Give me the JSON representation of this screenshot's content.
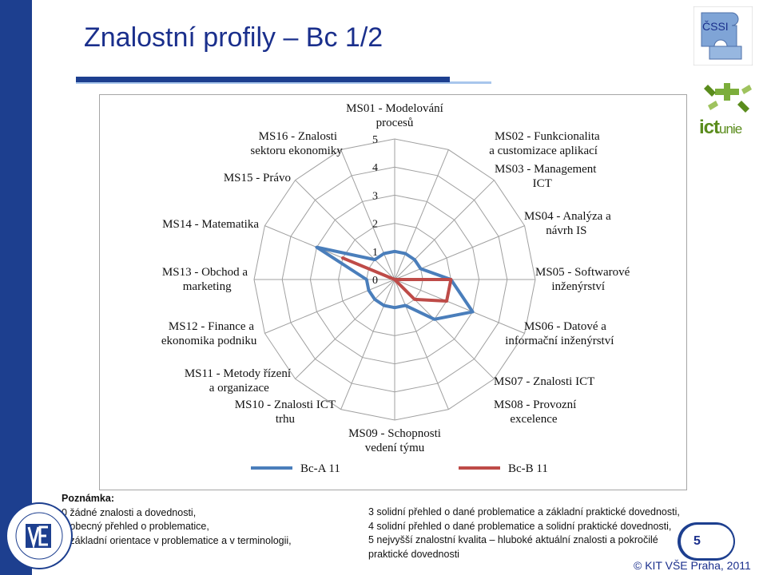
{
  "slide": {
    "title": "Znalostní profily – Bc 1/2",
    "page_number": "5",
    "footer": "© KIT VŠE Praha, 2011",
    "logo_cssi_text": "ČSSI",
    "logo_ict_text": "ict",
    "logo_ict_suffix": "unie"
  },
  "colors": {
    "brand_blue": "#1d3f8f",
    "series_a": "#4a7ebb",
    "series_b": "#be4b48",
    "grid": "#a0a0a0"
  },
  "chart_data": {
    "type": "radar",
    "axes": [
      [
        "MS01 - Modelování",
        "procesů"
      ],
      [
        "MS02 - Funkcionalita",
        "a customizace aplikací"
      ],
      [
        "MS03 - Management",
        "ICT"
      ],
      [
        "MS04 - Analýza a",
        "návrh IS"
      ],
      [
        "MS05 - Softwarové",
        "inženýrství"
      ],
      [
        "MS06 - Datové a",
        "informační inženýrství"
      ],
      [
        "MS07 - Znalosti ICT"
      ],
      [
        "MS08 - Provozní",
        "excelence"
      ],
      [
        "MS09 - Schopnosti",
        "vedení týmu"
      ],
      [
        "MS10 - Znalosti ICT",
        "trhu"
      ],
      [
        "MS11 - Metody řízení",
        "a organizace"
      ],
      [
        "MS12 - Finance a",
        "ekonomika podniku"
      ],
      [
        "MS13 - Obchod a",
        "marketing"
      ],
      [
        "MS14 - Matematika"
      ],
      [
        "MS15 - Právo"
      ],
      [
        "MS16 - Znalosti",
        "sektoru ekonomiky"
      ]
    ],
    "rticks": [
      "0",
      "1",
      "2",
      "3",
      "4",
      "5"
    ],
    "rlim": [
      0,
      5
    ],
    "grid": true,
    "legend_position": "bottom",
    "series": [
      {
        "name": "Bc-A 11",
        "values": [
          1,
          1,
          1,
          1,
          2,
          3,
          2,
          1,
          1,
          1,
          1,
          1,
          1,
          3,
          1,
          1
        ]
      },
      {
        "name": "Bc-B 11",
        "values": [
          0,
          0,
          0,
          0,
          2,
          2,
          1,
          0,
          0,
          0,
          0,
          0,
          0,
          2,
          0,
          0
        ]
      }
    ]
  },
  "note": {
    "heading": "Poznámka:",
    "left": [
      "0 žádné znalosti a dovednosti,",
      "1 obecný přehled o problematice,",
      "2 základní orientace v problematice a v terminologii,"
    ],
    "right": [
      "3 solidní přehled o dané problematice a základní praktické dovednosti,",
      "4 solidní přehled o dané problematice a solidní praktické dovednosti,",
      "5 nejvyšší znalostní kvalita – hluboké aktuální znalosti a pokročilé",
      "praktické dovednosti"
    ]
  }
}
